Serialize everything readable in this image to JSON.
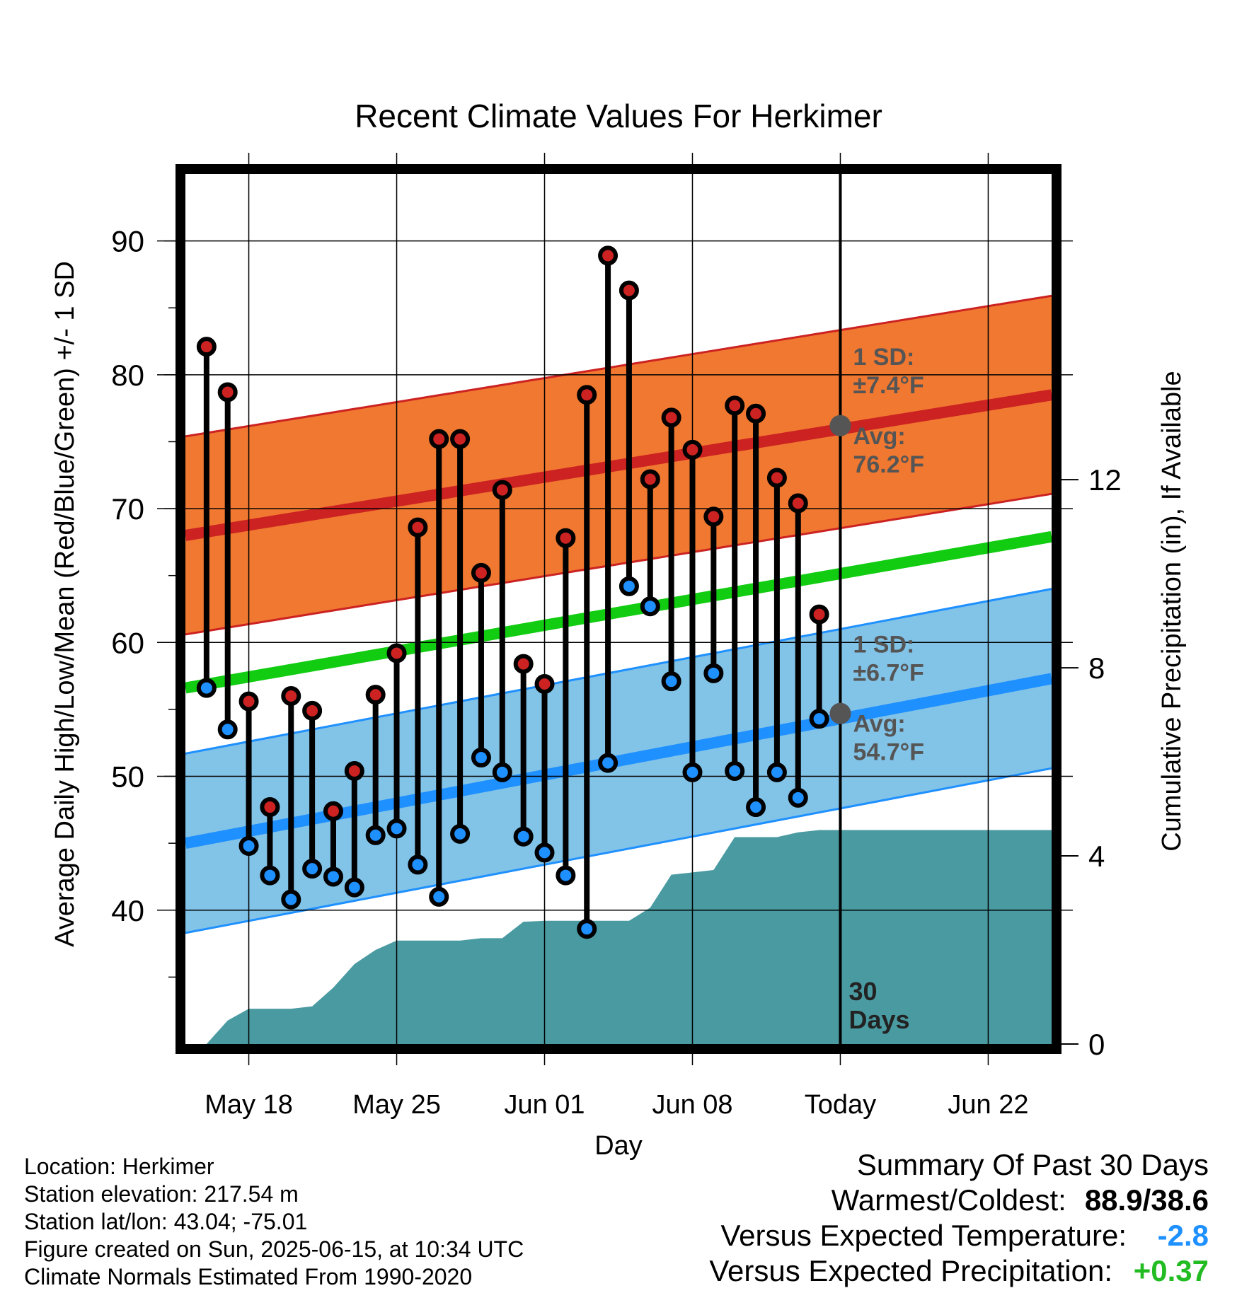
{
  "chart_data": {
    "type": "line",
    "title": "Recent Climate Values For Herkimer",
    "xlabel": "Day",
    "ylabel": "Average Daily High/Low/Mean (Red/Blue/Green) +/- 1 SD",
    "y2label": "Cumulative Precipitation (in), If Available",
    "xlim": [
      "2025-05-15",
      "2025-06-25"
    ],
    "ylim": [
      30,
      95
    ],
    "y2lim": [
      0,
      18.5
    ],
    "yticks": [
      40,
      50,
      60,
      70,
      80,
      90
    ],
    "y2ticks": [
      0,
      4,
      8,
      12
    ],
    "xticks": [
      {
        "date": "2025-05-18",
        "label": "May 18"
      },
      {
        "date": "2025-05-25",
        "label": "May 25"
      },
      {
        "date": "2025-06-01",
        "label": "Jun 01"
      },
      {
        "date": "2025-06-08",
        "label": "Jun 08"
      },
      {
        "date": "2025-06-15",
        "label": "Today"
      },
      {
        "date": "2025-06-22",
        "label": "Jun 22"
      }
    ],
    "grid": true,
    "today": "2025-06-15",
    "today_label": "30 Days",
    "dates": [
      "2025-05-16",
      "2025-05-17",
      "2025-05-18",
      "2025-05-19",
      "2025-05-20",
      "2025-05-21",
      "2025-05-22",
      "2025-05-23",
      "2025-05-24",
      "2025-05-25",
      "2025-05-26",
      "2025-05-27",
      "2025-05-28",
      "2025-05-29",
      "2025-05-30",
      "2025-05-31",
      "2025-06-01",
      "2025-06-02",
      "2025-06-03",
      "2025-06-04",
      "2025-06-05",
      "2025-06-06",
      "2025-06-07",
      "2025-06-08",
      "2025-06-09",
      "2025-06-10",
      "2025-06-11",
      "2025-06-12",
      "2025-06-13",
      "2025-06-14"
    ],
    "series": [
      {
        "name": "High",
        "color": "#cc2222",
        "values": [
          82.1,
          78.7,
          55.6,
          47.7,
          56.0,
          54.9,
          47.4,
          50.4,
          56.1,
          59.2,
          68.6,
          75.2,
          75.2,
          65.2,
          71.4,
          58.4,
          56.9,
          67.8,
          78.5,
          88.9,
          86.3,
          72.2,
          76.8,
          74.4,
          69.4,
          77.7,
          77.1,
          72.3,
          70.4,
          62.1
        ]
      },
      {
        "name": "Low",
        "color": "#1e90ff",
        "values": [
          56.6,
          53.5,
          44.8,
          42.6,
          40.8,
          43.1,
          42.5,
          41.7,
          45.6,
          46.1,
          43.4,
          41.0,
          45.7,
          51.4,
          50.3,
          45.5,
          44.3,
          42.6,
          38.6,
          51.0,
          64.2,
          62.7,
          57.1,
          50.3,
          57.7,
          50.4,
          47.7,
          50.3,
          48.4,
          54.3
        ]
      }
    ],
    "normals": {
      "high_avg": {
        "start": 68.0,
        "end": 78.5,
        "color": "#cc2222"
      },
      "high_band": {
        "sd": 7.4,
        "color": "#f07830"
      },
      "low_avg": {
        "start": 45.0,
        "end": 57.3,
        "color": "#1e90ff"
      },
      "low_band": {
        "sd": 6.7,
        "color": "#82c3e8"
      },
      "mean": {
        "start": 56.6,
        "end": 67.9,
        "color": "#11cc11"
      }
    },
    "precip_cumulative": {
      "color": "#4a9aa2",
      "dates": [
        "2025-05-16",
        "2025-05-17",
        "2025-05-18",
        "2025-05-19",
        "2025-05-20",
        "2025-05-21",
        "2025-05-22",
        "2025-05-23",
        "2025-05-24",
        "2025-05-25",
        "2025-05-26",
        "2025-05-27",
        "2025-05-28",
        "2025-05-29",
        "2025-05-30",
        "2025-05-31",
        "2025-06-01",
        "2025-06-02",
        "2025-06-03",
        "2025-06-04",
        "2025-06-05",
        "2025-06-06",
        "2025-06-07",
        "2025-06-08",
        "2025-06-09",
        "2025-06-10",
        "2025-06-11",
        "2025-06-12",
        "2025-06-13",
        "2025-06-14",
        "2025-06-15",
        "2025-06-25"
      ],
      "values": [
        0.0,
        0.5,
        0.75,
        0.75,
        0.75,
        0.8,
        1.2,
        1.7,
        2.0,
        2.2,
        2.2,
        2.2,
        2.2,
        2.25,
        2.25,
        2.6,
        2.62,
        2.62,
        2.62,
        2.62,
        2.62,
        2.9,
        3.6,
        3.65,
        3.7,
        4.4,
        4.4,
        4.4,
        4.5,
        4.55,
        4.55,
        4.55
      ]
    },
    "annotations": {
      "high_sd_label": "1 SD:",
      "high_sd_value": "±7.4°F",
      "high_avg_label": "Avg:",
      "high_avg_value": "76.2°F",
      "high_avg_at_today": 76.2,
      "low_sd_label": "1 SD:",
      "low_sd_value": "±6.7°F",
      "low_avg_label": "Avg:",
      "low_avg_value": "54.7°F",
      "low_avg_at_today": 54.7
    }
  },
  "info": {
    "location": "Location: Herkimer",
    "elevation": "Station elevation: 217.54 m",
    "latlon": "Station lat/lon: 43.04; -75.01",
    "created": "Figure created on Sun, 2025-06-15, at 10:34 UTC",
    "normals": "Climate Normals Estimated From 1990-2020"
  },
  "summary": {
    "title": "Summary Of Past 30 Days",
    "warm_cold_label": "Warmest/Coldest:",
    "warm_cold_value": "88.9/38.6",
    "temp_label": "Versus Expected Temperature:",
    "temp_value": "-2.8",
    "precip_label": "Versus Expected Precipitation:",
    "precip_value": "+0.37"
  }
}
